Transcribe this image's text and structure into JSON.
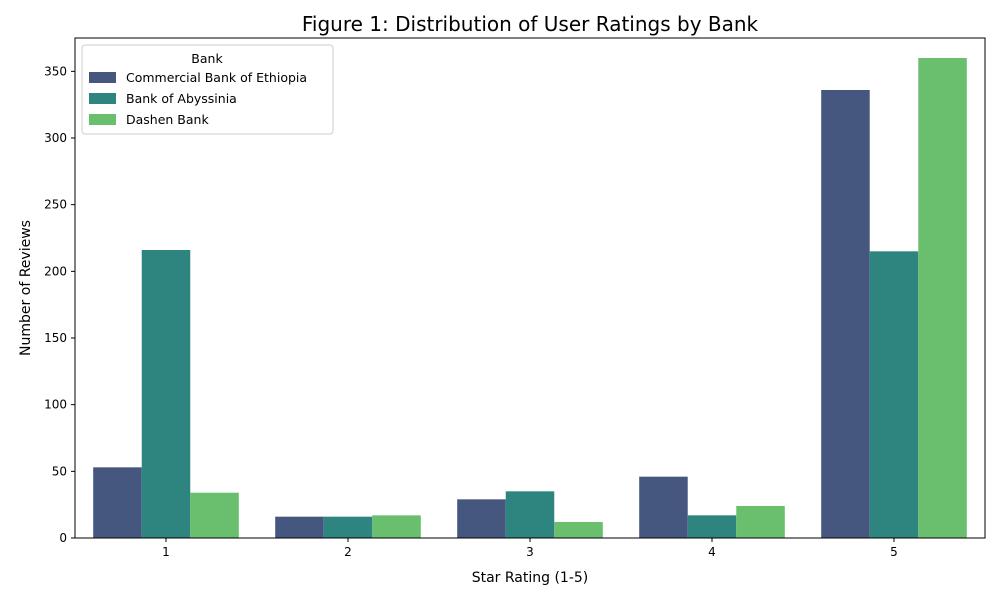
{
  "chart_data": {
    "type": "bar",
    "title": "Figure 1: Distribution of User Ratings by Bank",
    "xlabel": "Star Rating (1-5)",
    "ylabel": "Number of Reviews",
    "categories": [
      "1",
      "2",
      "3",
      "4",
      "5"
    ],
    "ylim": [
      0,
      375
    ],
    "yticks": [
      0,
      50,
      100,
      150,
      200,
      250,
      300,
      350
    ],
    "grid": false,
    "legend": {
      "title": "Bank",
      "placement": "top-left"
    },
    "series": [
      {
        "name": "Commercial Bank of Ethiopia",
        "color": "#46577f",
        "values": [
          53,
          16,
          29,
          46,
          336
        ]
      },
      {
        "name": "Bank of Abyssinia",
        "color": "#2e8580",
        "values": [
          216,
          16,
          35,
          17,
          215
        ]
      },
      {
        "name": "Dashen Bank",
        "color": "#6abf6e",
        "values": [
          34,
          17,
          12,
          24,
          360
        ]
      }
    ]
  }
}
